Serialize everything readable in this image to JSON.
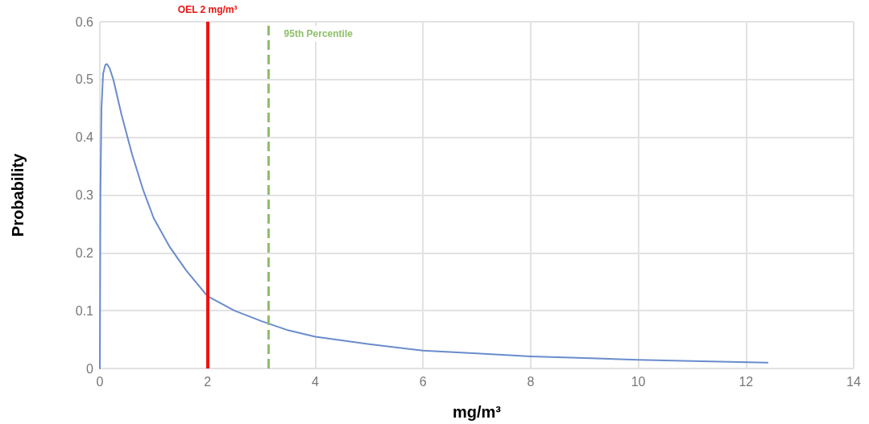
{
  "chart_data": {
    "type": "line",
    "xlabel": "mg/m³",
    "ylabel": "Probability",
    "x": [
      0,
      0.01,
      0.03,
      0.06,
      0.1,
      0.13,
      0.18,
      0.25,
      0.4,
      0.6,
      0.8,
      1.0,
      1.3,
      1.6,
      2.0,
      2.5,
      3.0,
      3.5,
      4,
      5,
      6,
      7,
      8,
      9,
      10,
      11,
      12.4
    ],
    "series": [
      {
        "color": "#6a8ccc",
        "values": [
          0,
          0.3,
          0.45,
          0.51,
          0.525,
          0.527,
          0.52,
          0.5,
          0.44,
          0.37,
          0.31,
          0.26,
          0.21,
          0.17,
          0.125,
          0.1,
          0.082,
          0.066,
          0.055,
          0.042,
          0.031,
          0.026,
          0.021,
          0.018,
          0.015,
          0.013,
          0.01
        ]
      }
    ],
    "xlim": [
      0,
      14
    ],
    "xticks": [
      0,
      2,
      4,
      6,
      8,
      10,
      12,
      14
    ],
    "ylim": [
      0,
      0.6
    ],
    "yticks": [
      0,
      0.1,
      0.2,
      0.3,
      0.4,
      0.5,
      0.6
    ],
    "grid": true,
    "marker": "none",
    "line_style": "solid",
    "ref_lines": [
      {
        "axis": "x",
        "value": 2,
        "label": "OEL 2 mg/m³",
        "color": "#ee1111",
        "line_style": "solid"
      },
      {
        "axis": "x",
        "value": 3.13,
        "label": "95th Percentile",
        "color": "#8fbf6a",
        "line_style": "dashed"
      }
    ]
  }
}
